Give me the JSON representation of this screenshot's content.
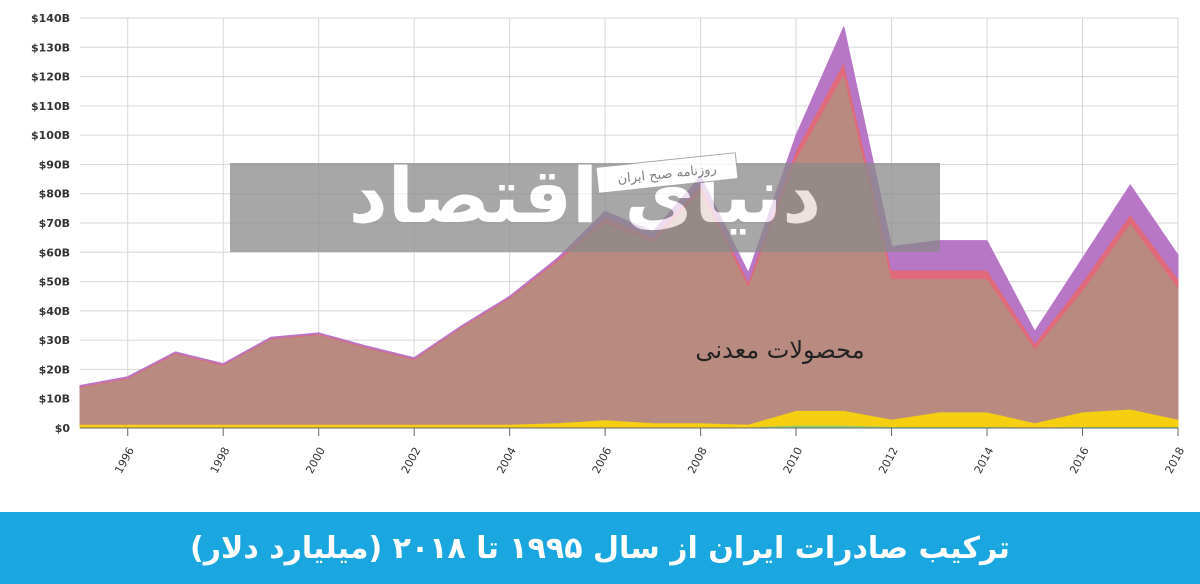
{
  "chart_data": {
    "type": "stacked-area",
    "title": "ترکیب صادرات ایران از سال ۱۹۹۵ تا ۲۰۱۸ (میلیارد دلار)",
    "annotation": "محصولات معدنی",
    "watermark": "دنیای اقتصاد",
    "watermark_tag": "روزنامه صبح ایران",
    "x": [
      1995,
      1996,
      1997,
      1998,
      1999,
      2000,
      2001,
      2002,
      2003,
      2004,
      2005,
      2006,
      2007,
      2008,
      2009,
      2010,
      2011,
      2012,
      2013,
      2014,
      2015,
      2016,
      2017,
      2018
    ],
    "xlim": [
      1995,
      2018
    ],
    "xticks": [
      1996,
      1998,
      2000,
      2002,
      2004,
      2006,
      2008,
      2010,
      2012,
      2014,
      2016,
      2018
    ],
    "ylim": [
      0,
      140
    ],
    "yticks": [
      {
        "value": 0,
        "label": "$0"
      },
      {
        "value": 10,
        "label": "$10B"
      },
      {
        "value": 20,
        "label": "$20B"
      },
      {
        "value": 30,
        "label": "$30B"
      },
      {
        "value": 40,
        "label": "$40B"
      },
      {
        "value": 50,
        "label": "$50B"
      },
      {
        "value": 60,
        "label": "$60B"
      },
      {
        "value": 70,
        "label": "$70B"
      },
      {
        "value": 80,
        "label": "$80B"
      },
      {
        "value": 90,
        "label": "$90B"
      },
      {
        "value": 100,
        "label": "$100B"
      },
      {
        "value": 110,
        "label": "$110B"
      },
      {
        "value": 120,
        "label": "$120B"
      },
      {
        "value": 130,
        "label": "$130B"
      },
      {
        "value": 140,
        "label": "$140B"
      }
    ],
    "grid": true,
    "series": [
      {
        "color": "#8fd16a",
        "values": [
          0.3,
          0.3,
          0.3,
          0.3,
          0.3,
          0.3,
          0.3,
          0.3,
          0.3,
          0.3,
          0.3,
          0.3,
          0.3,
          0.3,
          0.3,
          1,
          1,
          0.5,
          0.5,
          0.5,
          0.3,
          0.5,
          0.5,
          0.5
        ]
      },
      {
        "color": "#f5cf10",
        "values": [
          1,
          1,
          1,
          1,
          1,
          1,
          1,
          1,
          1,
          1,
          1.5,
          2.5,
          1.5,
          1.5,
          1,
          5,
          5,
          2.5,
          5,
          5,
          1.5,
          5,
          6,
          2.5
        ]
      },
      {
        "name": "محصولات معدنی",
        "color": "#b98b80",
        "values": [
          12.6,
          15.6,
          24.1,
          20.1,
          29.1,
          30.6,
          26.1,
          22.1,
          33.1,
          43.1,
          55.2,
          67.2,
          61.7,
          79.2,
          47.2,
          86,
          115,
          48,
          45.5,
          45.5,
          25.2,
          41.5,
          63.5,
          45
        ]
      },
      {
        "color": "#e0697a",
        "values": [
          0.3,
          0.3,
          0.3,
          0.3,
          0.3,
          0.3,
          0.3,
          0.3,
          0.3,
          0.3,
          0.5,
          2,
          1.5,
          2,
          1.5,
          3,
          4,
          3,
          3,
          3,
          2,
          3,
          3,
          3
        ]
      },
      {
        "color": "#b776c6",
        "values": [
          0.3,
          0.3,
          0.3,
          0.3,
          0.3,
          0.3,
          0.3,
          0.3,
          0.3,
          0.3,
          0.5,
          2,
          2,
          3,
          3,
          5,
          12,
          8,
          10,
          10,
          4,
          8,
          10,
          8
        ]
      }
    ]
  }
}
